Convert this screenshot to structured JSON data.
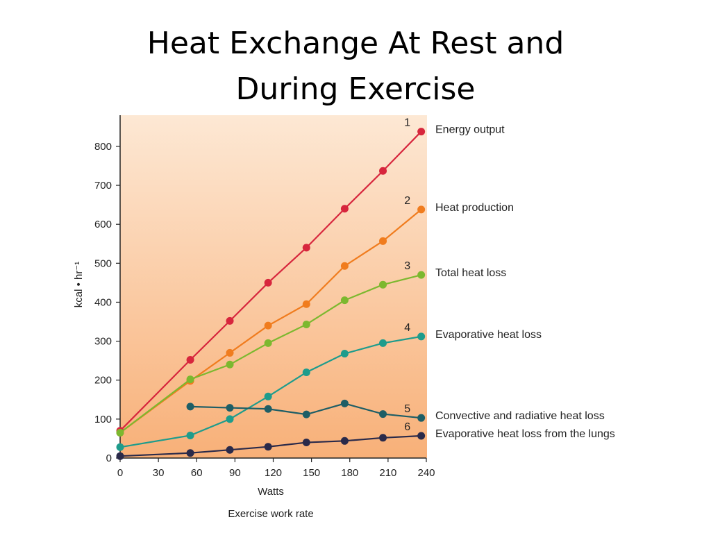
{
  "slide": {
    "title_line1": "Heat Exchange At Rest and",
    "title_line2": "During Exercise"
  },
  "chart_data": {
    "type": "line",
    "xlabel": "Watts",
    "xlabel_sub": "Exercise work rate",
    "ylabel": "kcal • hr⁻¹",
    "xlim": [
      0,
      240
    ],
    "ylim": [
      0,
      880
    ],
    "xticks": [
      0,
      30,
      60,
      90,
      120,
      150,
      180,
      210,
      240
    ],
    "yticks": [
      0,
      100,
      200,
      300,
      400,
      500,
      600,
      700,
      800
    ],
    "grid": false,
    "background": "orange vertical gradient",
    "series": [
      {
        "number": "1",
        "name": "Energy output",
        "color": "#d7263d",
        "x": [
          0,
          55,
          86,
          116,
          146,
          176,
          206,
          236
        ],
        "y": [
          70,
          252,
          352,
          450,
          540,
          640,
          737,
          838
        ]
      },
      {
        "number": "2",
        "name": "Heat production",
        "color": "#f07c1e",
        "x": [
          0,
          55,
          86,
          116,
          146,
          176,
          206,
          236
        ],
        "y": [
          65,
          198,
          270,
          340,
          395,
          493,
          557,
          638
        ]
      },
      {
        "number": "3",
        "name": "Total heat loss",
        "color": "#7cb82f",
        "x": [
          0,
          55,
          86,
          116,
          146,
          176,
          206,
          236
        ],
        "y": [
          65,
          202,
          240,
          295,
          343,
          405,
          445,
          470
        ]
      },
      {
        "number": "4",
        "name": "Evaporative heat loss",
        "color": "#1e9c8c",
        "x": [
          0,
          55,
          86,
          116,
          146,
          176,
          206,
          236
        ],
        "y": [
          28,
          58,
          100,
          158,
          220,
          268,
          295,
          312
        ]
      },
      {
        "number": "5",
        "name": "Convective and radiative heat loss",
        "color": "#1e5e66",
        "x": [
          55,
          86,
          116,
          146,
          176,
          206,
          236
        ],
        "y": [
          132,
          129,
          126,
          112,
          140,
          113,
          103
        ]
      },
      {
        "number": "6",
        "name": "Evaporative heat loss from the lungs",
        "color": "#2a2a4a",
        "x": [
          0,
          55,
          86,
          116,
          146,
          176,
          206,
          236
        ],
        "y": [
          5,
          13,
          21,
          29,
          40,
          44,
          52,
          57
        ]
      }
    ]
  }
}
